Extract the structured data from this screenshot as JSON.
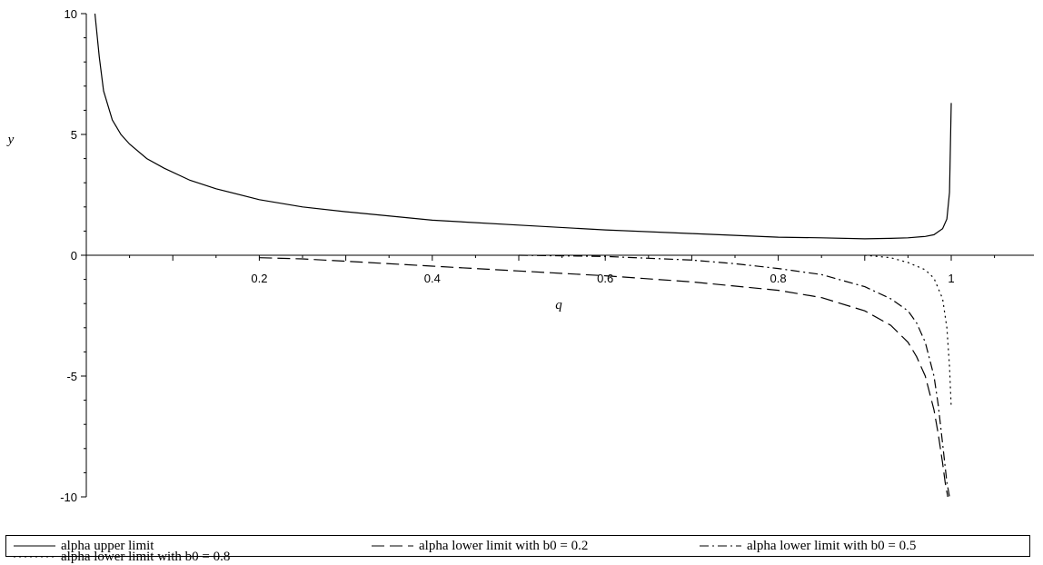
{
  "chart_data": {
    "type": "line",
    "xlabel": "q",
    "ylabel": "y",
    "xlim": [
      0,
      1.1
    ],
    "ylim": [
      -10,
      10
    ],
    "xticks": [
      0.2,
      0.4,
      0.6,
      0.8,
      1
    ],
    "xtick_labels": [
      "0.2",
      "0.4",
      "0.6",
      "0.8",
      "1"
    ],
    "yticks": [
      -10,
      -5,
      0,
      5,
      10
    ],
    "ytick_labels": [
      "-10",
      "-5",
      "0",
      "5",
      "10"
    ],
    "grid": false,
    "legend_position": "bottom",
    "series": [
      {
        "name": "alpha upper limit",
        "style": "solid",
        "color": "#000000",
        "x": [
          0.01,
          0.015,
          0.02,
          0.03,
          0.04,
          0.05,
          0.07,
          0.09,
          0.12,
          0.15,
          0.2,
          0.25,
          0.3,
          0.4,
          0.5,
          0.6,
          0.7,
          0.8,
          0.85,
          0.9,
          0.93,
          0.95,
          0.97,
          0.98,
          0.99,
          0.995,
          0.998,
          1.0
        ],
        "y": [
          10,
          8.2,
          6.8,
          5.6,
          5.0,
          4.6,
          4.0,
          3.6,
          3.1,
          2.75,
          2.3,
          2.0,
          1.8,
          1.45,
          1.25,
          1.05,
          0.9,
          0.75,
          0.72,
          0.68,
          0.7,
          0.72,
          0.78,
          0.85,
          1.1,
          1.5,
          2.6,
          6.3
        ]
      },
      {
        "name": "alpha lower limit with b0 = 0.2",
        "style": "dash",
        "color": "#000000",
        "x": [
          0.2,
          0.25,
          0.3,
          0.4,
          0.5,
          0.6,
          0.7,
          0.8,
          0.85,
          0.9,
          0.93,
          0.95,
          0.96,
          0.97,
          0.98,
          0.985,
          0.99,
          0.993,
          0.996
        ],
        "y": [
          -0.1,
          -0.15,
          -0.25,
          -0.45,
          -0.65,
          -0.85,
          -1.1,
          -1.45,
          -1.75,
          -2.3,
          -2.9,
          -3.6,
          -4.2,
          -5.0,
          -6.4,
          -7.4,
          -8.6,
          -9.4,
          -10
        ]
      },
      {
        "name": "alpha lower limit with b0 = 0.5",
        "style": "dashdot",
        "color": "#000000",
        "x": [
          0.5,
          0.6,
          0.7,
          0.75,
          0.8,
          0.85,
          0.9,
          0.93,
          0.95,
          0.96,
          0.97,
          0.98,
          0.985,
          0.99,
          0.995,
          0.998
        ],
        "y": [
          0,
          -0.05,
          -0.2,
          -0.35,
          -0.55,
          -0.8,
          -1.3,
          -1.8,
          -2.3,
          -2.8,
          -3.6,
          -5.0,
          -6.2,
          -7.8,
          -9.4,
          -10
        ]
      },
      {
        "name": "alpha lower limit with b0 = 0.8",
        "style": "dot",
        "color": "#000000",
        "x": [
          0.9,
          0.93,
          0.95,
          0.97,
          0.98,
          0.99,
          0.995,
          0.998,
          1.0
        ],
        "y": [
          0,
          -0.1,
          -0.3,
          -0.6,
          -0.95,
          -1.8,
          -3.0,
          -4.6,
          -6.3
        ]
      }
    ]
  }
}
